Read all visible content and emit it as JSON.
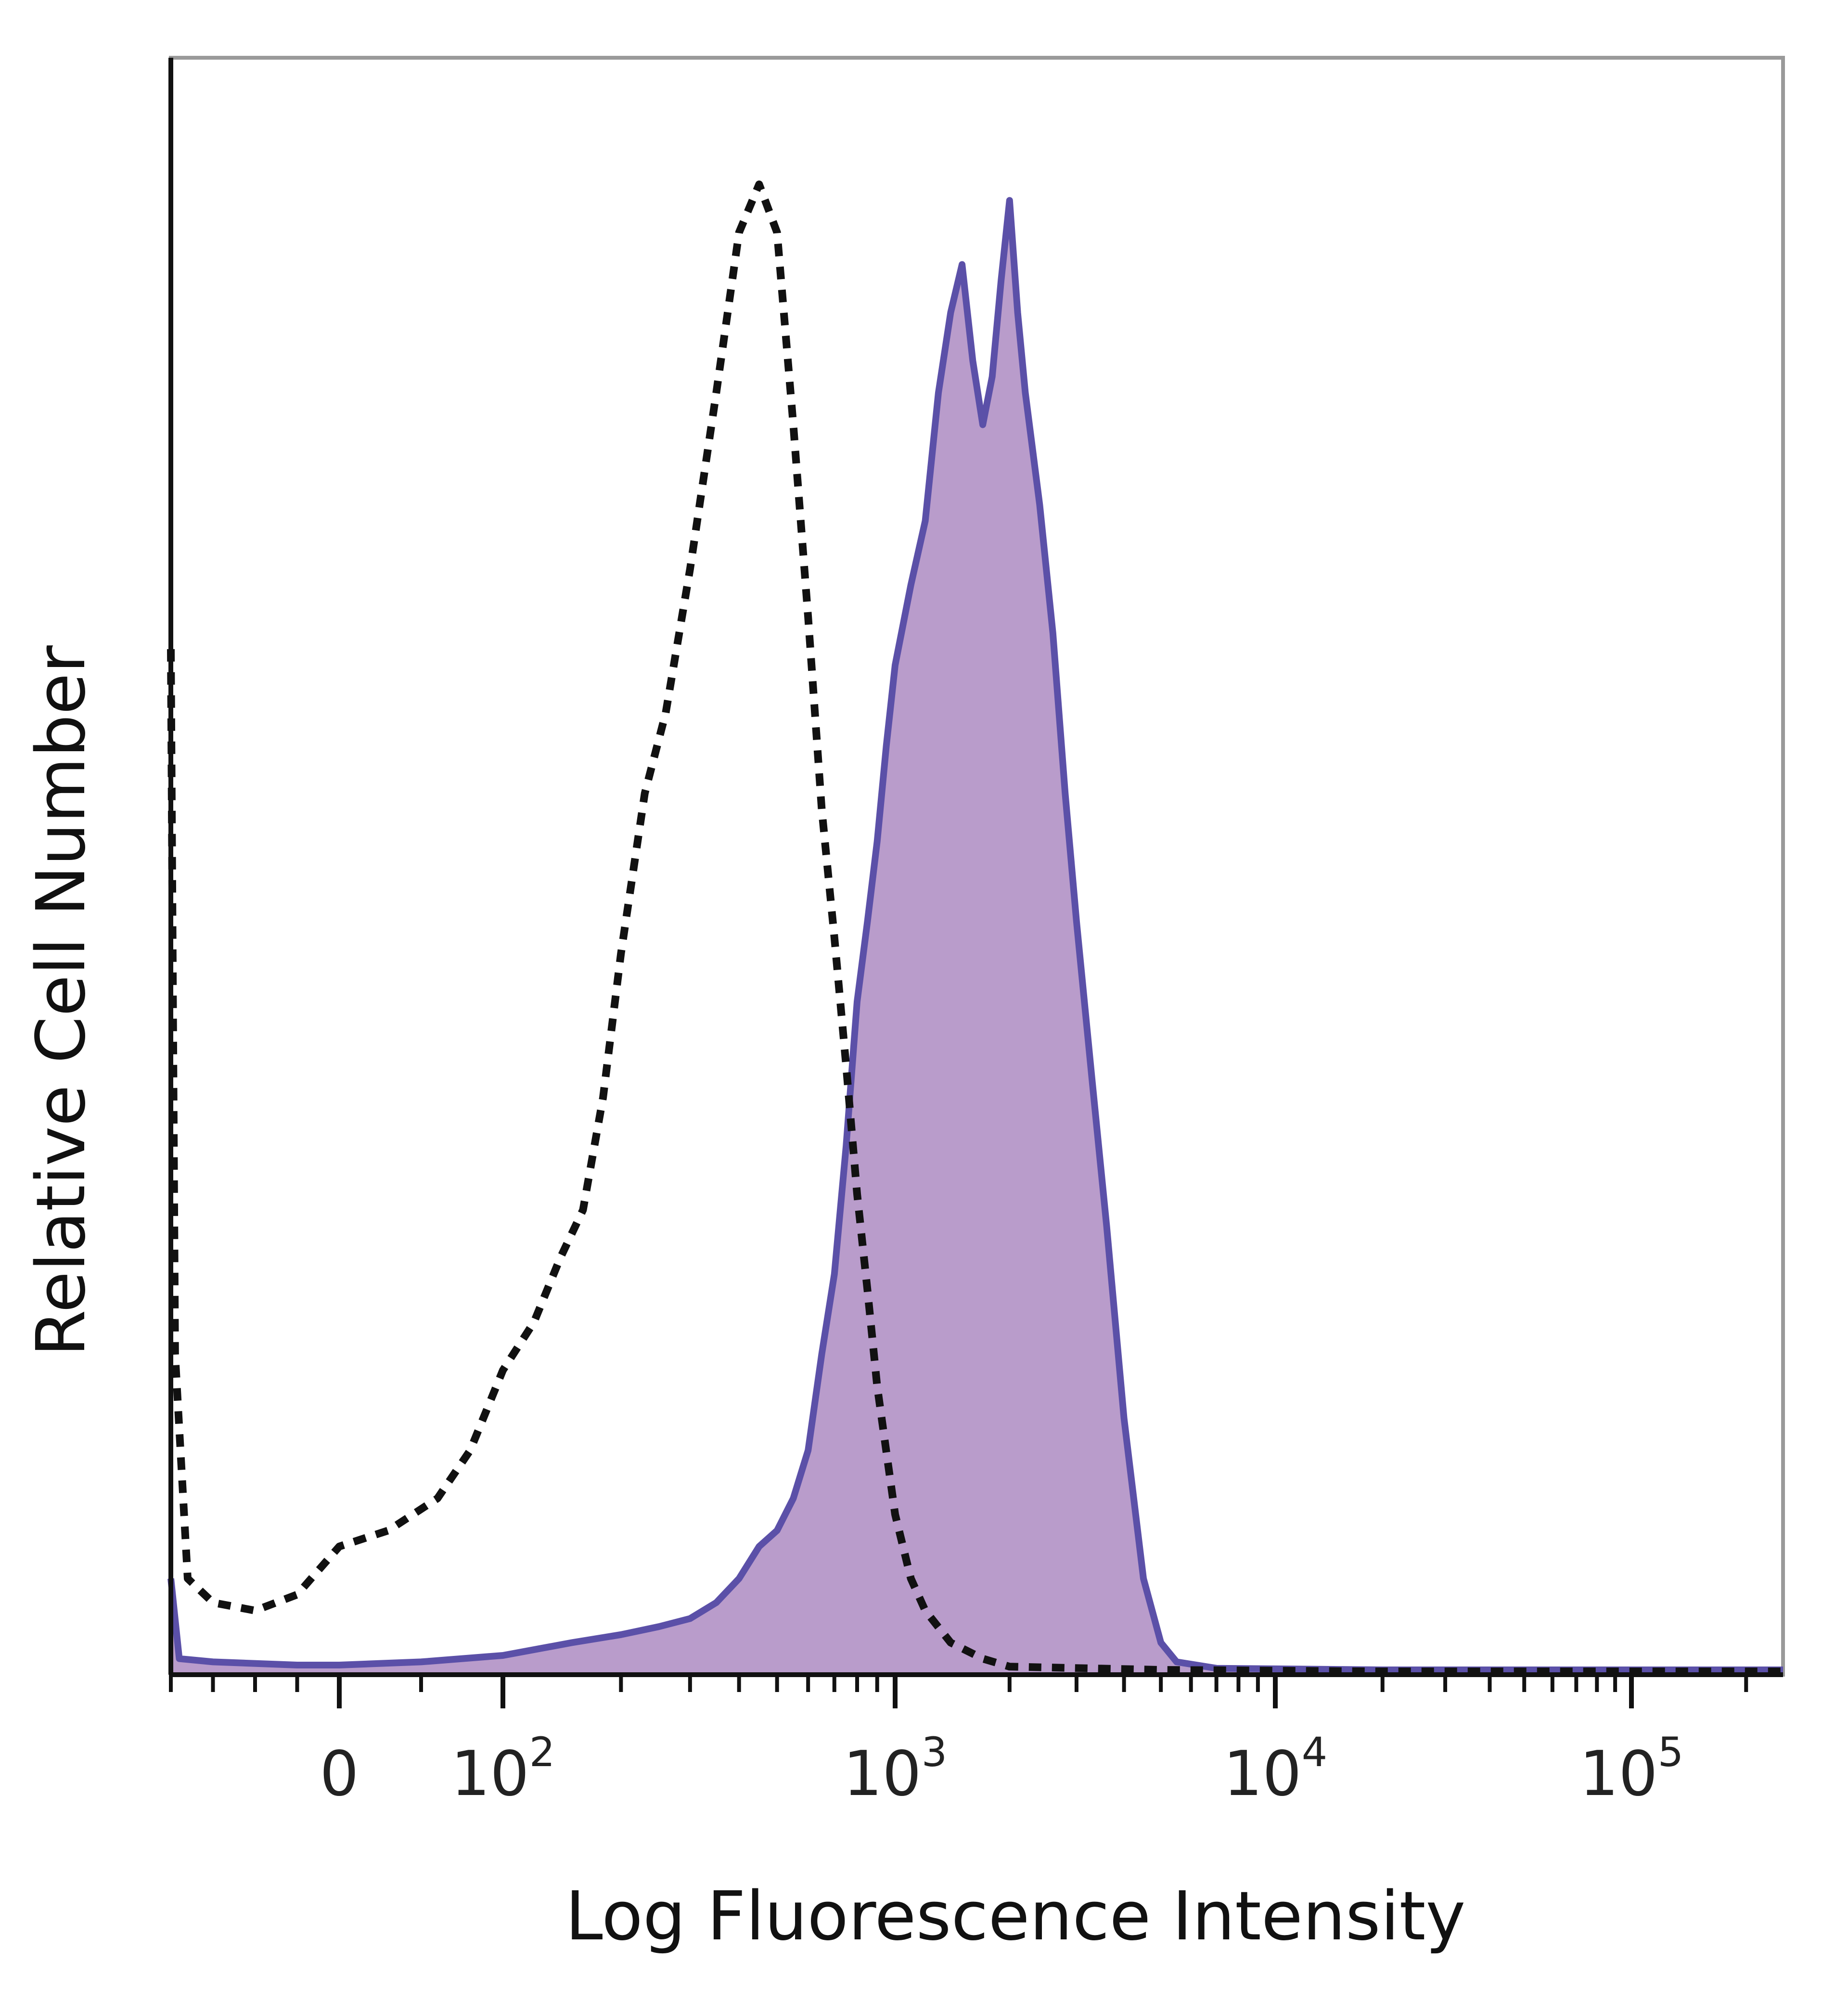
{
  "chart_data": {
    "type": "area",
    "title": "",
    "xlabel": "Log Fluorescence Intensity",
    "ylabel": "Relative Cell Number",
    "x_scale": "biexponential",
    "xlim": [
      -200,
      250000
    ],
    "ylim": [
      0,
      100
    ],
    "x_ticks": [
      {
        "value": 0,
        "label": "0"
      },
      {
        "value": 100,
        "label": "10",
        "sup": "2"
      },
      {
        "value": 1000,
        "label": "10",
        "sup": "3"
      },
      {
        "value": 10000,
        "label": "10",
        "sup": "4"
      },
      {
        "value": 100000,
        "label": "10",
        "sup": "5"
      }
    ],
    "grid": false,
    "legend": "none",
    "series": [
      {
        "style": "dashed",
        "color": "#111111",
        "fill": "none",
        "points": [
          [
            -200,
            64
          ],
          [
            -195,
            20
          ],
          [
            -180,
            6
          ],
          [
            -150,
            4.5
          ],
          [
            -100,
            4
          ],
          [
            -50,
            5
          ],
          [
            0,
            8
          ],
          [
            30,
            9
          ],
          [
            60,
            11
          ],
          [
            80,
            14
          ],
          [
            100,
            19
          ],
          [
            120,
            22
          ],
          [
            140,
            26
          ],
          [
            160,
            29
          ],
          [
            180,
            36
          ],
          [
            200,
            45
          ],
          [
            230,
            55
          ],
          [
            260,
            60
          ],
          [
            300,
            69
          ],
          [
            350,
            80
          ],
          [
            400,
            90
          ],
          [
            450,
            93
          ],
          [
            500,
            90
          ],
          [
            550,
            78
          ],
          [
            600,
            66
          ],
          [
            650,
            54
          ],
          [
            700,
            46
          ],
          [
            750,
            38
          ],
          [
            800,
            30
          ],
          [
            850,
            24
          ],
          [
            900,
            18
          ],
          [
            1000,
            10
          ],
          [
            1100,
            6
          ],
          [
            1200,
            4
          ],
          [
            1400,
            2
          ],
          [
            1700,
            1
          ],
          [
            2000,
            0.5
          ],
          [
            5000,
            0.3
          ],
          [
            20000,
            0.2
          ],
          [
            250000,
            0.2
          ]
        ]
      },
      {
        "style": "solid",
        "color": "#5b50a8",
        "fill": "#b99ccb",
        "points": [
          [
            -200,
            6
          ],
          [
            -190,
            1
          ],
          [
            -150,
            0.8
          ],
          [
            -50,
            0.6
          ],
          [
            0,
            0.6
          ],
          [
            50,
            0.8
          ],
          [
            100,
            1.2
          ],
          [
            150,
            2
          ],
          [
            200,
            2.5
          ],
          [
            250,
            3
          ],
          [
            300,
            3.5
          ],
          [
            350,
            4.5
          ],
          [
            400,
            6
          ],
          [
            450,
            8
          ],
          [
            500,
            9
          ],
          [
            550,
            11
          ],
          [
            600,
            14
          ],
          [
            650,
            20
          ],
          [
            700,
            25
          ],
          [
            750,
            33
          ],
          [
            800,
            42
          ],
          [
            850,
            47
          ],
          [
            900,
            52
          ],
          [
            950,
            58
          ],
          [
            1000,
            63
          ],
          [
            1100,
            68
          ],
          [
            1200,
            72
          ],
          [
            1300,
            80
          ],
          [
            1400,
            85
          ],
          [
            1500,
            88
          ],
          [
            1600,
            82
          ],
          [
            1700,
            78
          ],
          [
            1800,
            81
          ],
          [
            1900,
            87
          ],
          [
            2000,
            92
          ],
          [
            2100,
            85
          ],
          [
            2200,
            80
          ],
          [
            2400,
            73
          ],
          [
            2600,
            65
          ],
          [
            2800,
            55
          ],
          [
            3000,
            47
          ],
          [
            3300,
            37
          ],
          [
            3600,
            28
          ],
          [
            4000,
            16
          ],
          [
            4500,
            6
          ],
          [
            5000,
            2
          ],
          [
            5500,
            0.8
          ],
          [
            7000,
            0.4
          ],
          [
            20000,
            0.3
          ],
          [
            100000,
            0.3
          ],
          [
            250000,
            0.3
          ]
        ]
      }
    ]
  }
}
